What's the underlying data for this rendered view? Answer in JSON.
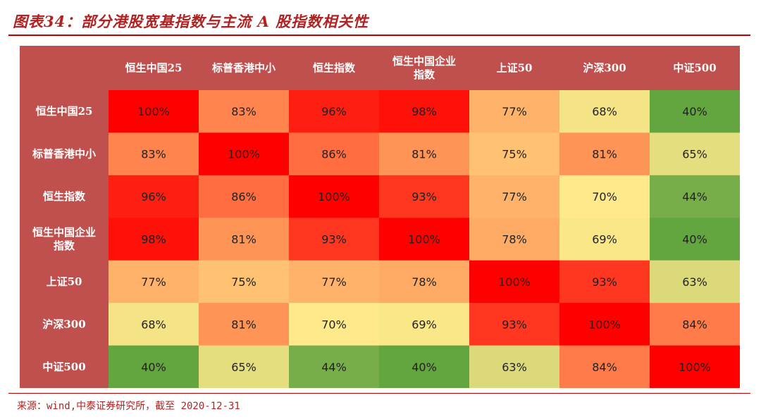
{
  "header": {
    "title": "图表34：部分港股宽基指数与主流 A 股指数相关性"
  },
  "footer": {
    "source": "来源：wind,中泰证券研究所，截至 2020-12-31"
  },
  "colors": {
    "title": "#b22222",
    "rule": "#c00000",
    "header_bg": "#c0504d",
    "header_text": "#ffffff",
    "high": "#ff0000",
    "mid": "#ffe98a",
    "low": "#63a53f"
  },
  "chart_data": {
    "type": "heatmap",
    "title": "",
    "rows": [
      [
        "恒生中国25"
      ],
      [
        "标普香港中小"
      ],
      [
        "恒生指数"
      ],
      [
        "恒生中国企业",
        "指数"
      ],
      [
        "上证50"
      ],
      [
        "沪深300"
      ],
      [
        "中证500"
      ]
    ],
    "columns": [
      [
        "恒生中国25"
      ],
      [
        "标普香港中小"
      ],
      [
        "恒生指数"
      ],
      [
        "恒生中国企业",
        "指数"
      ],
      [
        "上证50"
      ],
      [
        "沪深300"
      ],
      [
        "中证500"
      ]
    ],
    "values": [
      [
        100,
        83,
        96,
        98,
        77,
        68,
        40
      ],
      [
        83,
        100,
        86,
        81,
        75,
        81,
        65
      ],
      [
        96,
        86,
        100,
        93,
        77,
        70,
        44
      ],
      [
        98,
        81,
        93,
        100,
        78,
        69,
        40
      ],
      [
        77,
        75,
        77,
        78,
        100,
        93,
        63
      ],
      [
        68,
        81,
        70,
        69,
        93,
        100,
        84
      ],
      [
        40,
        65,
        44,
        40,
        63,
        84,
        100
      ]
    ],
    "unit": "%"
  }
}
